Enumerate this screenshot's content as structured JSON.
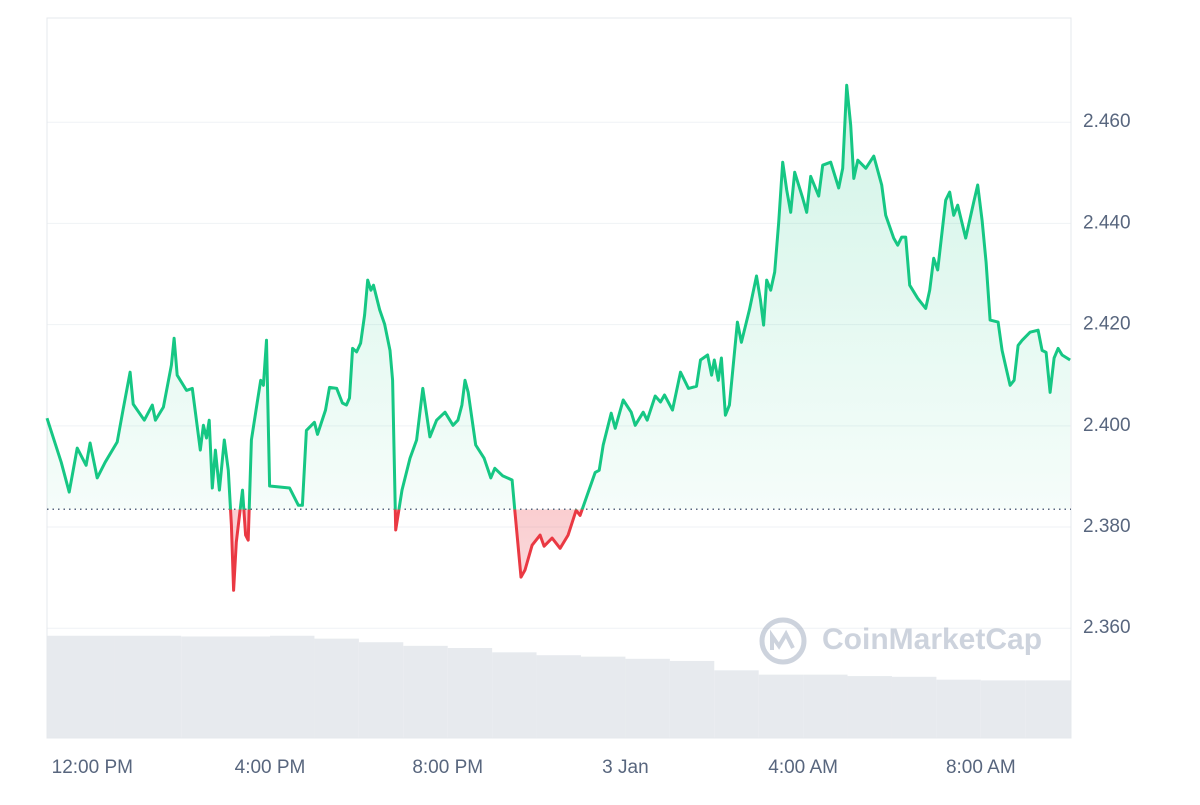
{
  "chart_data": {
    "type": "line",
    "watermark": "CoinMarketCap",
    "x": [
      10.98,
      11.3,
      11.48,
      11.66,
      11.86,
      11.95,
      12.11,
      12.29,
      12.56,
      12.69,
      12.85,
      12.92,
      13.17,
      13.35,
      13.42,
      13.6,
      13.78,
      13.84,
      13.91,
      14.12,
      14.25,
      14.43,
      14.5,
      14.57,
      14.63,
      14.7,
      14.77,
      14.86,
      14.97,
      15.06,
      15.13,
      15.18,
      15.24,
      15.38,
      15.45,
      15.51,
      15.58,
      15.72,
      15.79,
      15.85,
      15.92,
      15.99,
      16.44,
      16.64,
      16.73,
      16.82,
      17.0,
      17.07,
      17.25,
      17.34,
      17.5,
      17.63,
      17.72,
      17.79,
      17.86,
      17.95,
      18.04,
      18.13,
      18.2,
      18.27,
      18.33,
      18.47,
      18.58,
      18.7,
      18.76,
      18.83,
      18.97,
      19.15,
      19.3,
      19.44,
      19.6,
      19.75,
      19.94,
      20.12,
      20.23,
      20.32,
      20.39,
      20.46,
      20.63,
      20.82,
      20.97,
      21.06,
      21.24,
      21.45,
      21.51,
      21.65,
      21.74,
      21.9,
      22.08,
      22.17,
      22.35,
      22.53,
      22.71,
      22.89,
      22.98,
      23.14,
      23.32,
      23.41,
      23.5,
      23.68,
      23.77,
      23.95,
      24.13,
      24.22,
      24.4,
      24.49,
      24.67,
      24.79,
      24.88,
      25.06,
      25.24,
      25.42,
      25.6,
      25.69,
      25.85,
      25.94,
      26.0,
      26.09,
      26.16,
      26.25,
      26.34,
      26.52,
      26.61,
      26.79,
      26.95,
      27.04,
      27.11,
      27.18,
      27.27,
      27.36,
      27.45,
      27.54,
      27.63,
      27.72,
      27.81,
      27.99,
      28.08,
      28.17,
      28.35,
      28.44,
      28.62,
      28.8,
      28.89,
      28.98,
      29.07,
      29.14,
      29.23,
      29.41,
      29.59,
      29.77,
      29.86,
      30.04,
      30.13,
      30.22,
      30.31,
      30.4,
      30.58,
      30.76,
      30.85,
      30.94,
      31.03,
      31.21,
      31.3,
      31.39,
      31.48,
      31.66,
      31.84,
      31.93,
      32.03,
      32.12,
      32.21,
      32.39,
      32.48,
      32.57,
      32.66,
      32.75,
      32.84,
      32.93,
      33.11,
      33.29,
      33.38,
      33.47,
      33.56,
      33.65,
      33.74,
      33.83,
      34.01
    ],
    "values": [
      2.4015,
      2.3928,
      2.3869,
      2.3956,
      2.3922,
      2.3966,
      2.3897,
      2.3928,
      2.3968,
      2.4031,
      2.4106,
      2.4043,
      2.4011,
      2.4041,
      2.4011,
      2.4037,
      2.412,
      2.4173,
      2.41,
      2.407,
      2.4074,
      2.3952,
      2.4001,
      2.3976,
      2.4011,
      2.3877,
      2.3952,
      2.3873,
      2.3972,
      2.3912,
      2.3804,
      2.3675,
      2.377,
      2.3873,
      2.3784,
      2.3774,
      2.3972,
      2.4051,
      2.409,
      2.408,
      2.4169,
      2.3881,
      2.3877,
      2.3843,
      2.3843,
      2.3991,
      2.4007,
      2.3983,
      2.4031,
      2.4076,
      2.4074,
      2.4045,
      2.4041,
      2.4055,
      2.4153,
      2.4146,
      2.4163,
      2.4219,
      2.4288,
      2.4268,
      2.4278,
      2.4229,
      2.4201,
      2.4149,
      2.409,
      2.3794,
      2.3873,
      2.3936,
      2.3972,
      2.4074,
      2.3978,
      2.4011,
      2.4027,
      2.4001,
      2.4011,
      2.4041,
      2.409,
      2.4066,
      2.3962,
      2.3936,
      2.3897,
      2.3916,
      2.3901,
      2.3893,
      2.3833,
      2.3701,
      2.3715,
      2.3764,
      2.3784,
      2.3762,
      2.3778,
      2.3758,
      2.3784,
      2.3833,
      2.3823,
      2.3863,
      2.3908,
      2.3912,
      2.3962,
      2.4025,
      2.3995,
      2.4051,
      2.4027,
      2.4001,
      2.4027,
      2.4011,
      2.4059,
      2.4047,
      2.4061,
      2.4031,
      2.4106,
      2.4074,
      2.4078,
      2.413,
      2.414,
      2.41,
      2.413,
      2.409,
      2.4134,
      2.4021,
      2.4041,
      2.4205,
      2.4165,
      2.4229,
      2.4296,
      2.4248,
      2.4199,
      2.4288,
      2.4268,
      2.4304,
      2.4402,
      2.4521,
      2.4466,
      2.4422,
      2.4501,
      2.445,
      2.4422,
      2.4493,
      2.4454,
      2.4515,
      2.4521,
      2.447,
      2.4509,
      2.4673,
      2.4594,
      2.4489,
      2.4525,
      2.4509,
      2.4533,
      2.4476,
      2.4416,
      2.4371,
      2.4357,
      2.4373,
      2.4373,
      2.4278,
      2.4252,
      2.4232,
      2.4268,
      2.4331,
      2.4308,
      2.4446,
      2.4462,
      2.4416,
      2.4436,
      2.4371,
      2.4442,
      2.4476,
      2.4406,
      2.4323,
      2.4209,
      2.4205,
      2.4149,
      2.4114,
      2.408,
      2.409,
      2.4159,
      2.4169,
      2.4185,
      2.4189,
      2.4149,
      2.4145,
      2.4066,
      2.4134,
      2.4153,
      2.414,
      2.413
    ],
    "baseline": 2.3835,
    "color_up": "#16c784",
    "color_down": "#ea3943",
    "xlim": [
      10.98,
      34.03
    ],
    "xticks": [
      {
        "value": 12,
        "label": "12:00 PM"
      },
      {
        "value": 16,
        "label": "4:00 PM"
      },
      {
        "value": 20,
        "label": "8:00 PM"
      },
      {
        "value": 24,
        "label": "3 Jan"
      },
      {
        "value": 28,
        "label": "4:00 AM"
      },
      {
        "value": 32,
        "label": "8:00 AM"
      }
    ],
    "ylim": [
      2.3383,
      2.4806
    ],
    "yticks": [
      {
        "value": 2.36,
        "label": "2.360"
      },
      {
        "value": 2.38,
        "label": "2.380"
      },
      {
        "value": 2.4,
        "label": "2.400"
      },
      {
        "value": 2.42,
        "label": "2.420"
      },
      {
        "value": 2.44,
        "label": "2.440"
      },
      {
        "value": 2.46,
        "label": "2.460"
      }
    ],
    "grid": true,
    "volume": {
      "x": [
        10.98,
        12.5,
        14,
        16,
        17,
        18,
        19,
        20,
        21,
        22,
        23,
        24,
        25,
        26,
        27,
        28,
        29,
        30,
        31,
        32,
        33
      ],
      "values": [
        14.2,
        14.2,
        14.1,
        14.2,
        13.8,
        13.3,
        12.8,
        12.5,
        11.9,
        11.5,
        11.3,
        11,
        10.7,
        9.4,
        8.8,
        8.8,
        8.6,
        8.5,
        8.1,
        8,
        8
      ],
      "ylim": [
        0,
        100
      ],
      "color": "#e7eaee"
    }
  }
}
